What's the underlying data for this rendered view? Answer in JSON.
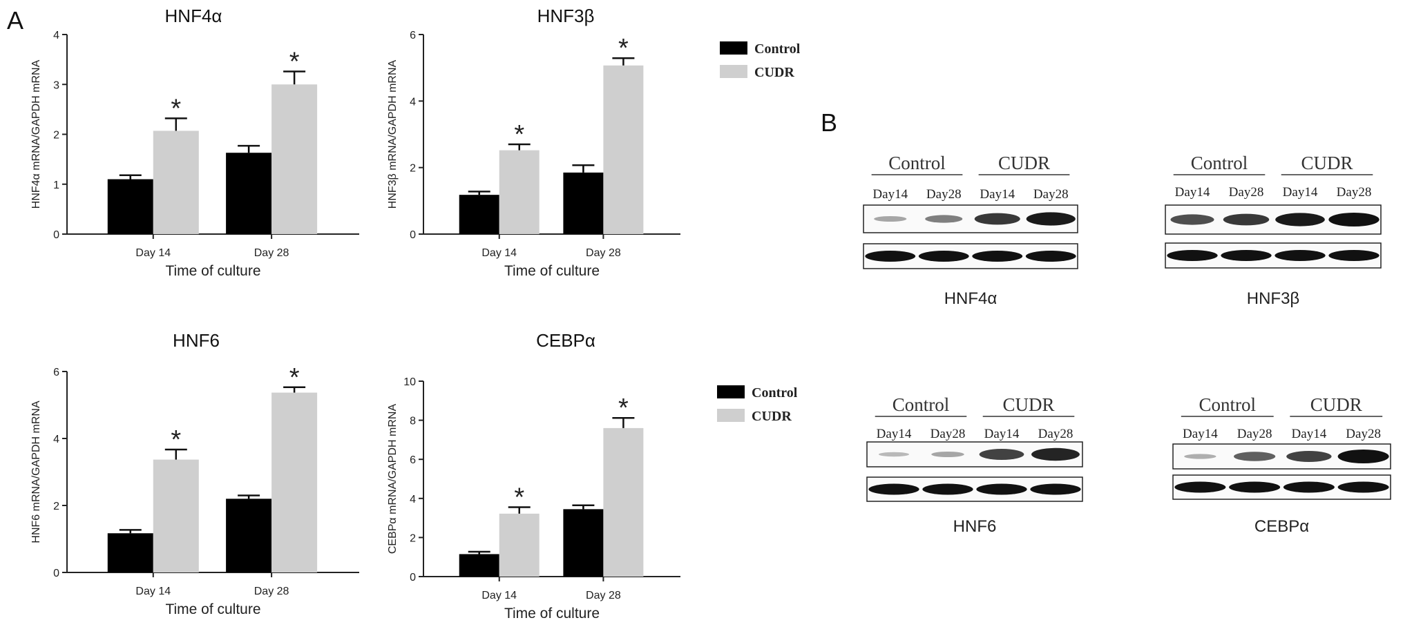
{
  "panel_labels": {
    "a": "A",
    "b": "B"
  },
  "colors": {
    "control": "#000000",
    "cudr": "#cfcfcf",
    "axis": "#222222",
    "band": "#111111"
  },
  "legend": {
    "control": "Control",
    "cudr": "CUDR"
  },
  "chart_data": [
    {
      "type": "bar",
      "title": "HNF4α",
      "ylabel": "HNF4α mRNA/GAPDH mRNA",
      "xlabel": "Time of culture",
      "categories": [
        "Day 14",
        "Day 28"
      ],
      "ylim": [
        0,
        4
      ],
      "yticks": [
        0,
        1,
        2,
        3,
        4
      ],
      "series": [
        {
          "name": "Control",
          "values": [
            1.1,
            1.63
          ],
          "errors": [
            0.08,
            0.14
          ]
        },
        {
          "name": "CUDR",
          "values": [
            2.07,
            3.0
          ],
          "errors": [
            0.25,
            0.26
          ]
        }
      ],
      "significance": [
        "*",
        "*"
      ]
    },
    {
      "type": "bar",
      "title": "HNF3β",
      "ylabel": "HNF3β mRNA/GAPDH mRNA",
      "xlabel": "Time of culture",
      "categories": [
        "Day 14",
        "Day 28"
      ],
      "ylim": [
        0,
        6
      ],
      "yticks": [
        0,
        2,
        4,
        6
      ],
      "series": [
        {
          "name": "Control",
          "values": [
            1.18,
            1.85
          ],
          "errors": [
            0.1,
            0.22
          ]
        },
        {
          "name": "CUDR",
          "values": [
            2.52,
            5.07
          ],
          "errors": [
            0.18,
            0.22
          ]
        }
      ],
      "significance": [
        "*",
        "*"
      ]
    },
    {
      "type": "bar",
      "title": "HNF6",
      "ylabel": "HNF6 mRNA/GAPDH mRNA",
      "xlabel": "Time of culture",
      "categories": [
        "Day 14",
        "Day 28"
      ],
      "ylim": [
        0,
        6
      ],
      "yticks": [
        0,
        2,
        4,
        6
      ],
      "series": [
        {
          "name": "Control",
          "values": [
            1.17,
            2.2
          ],
          "errors": [
            0.1,
            0.1
          ]
        },
        {
          "name": "CUDR",
          "values": [
            3.37,
            5.37
          ],
          "errors": [
            0.3,
            0.16
          ]
        }
      ],
      "significance": [
        "*",
        "*"
      ]
    },
    {
      "type": "bar",
      "title": "CEBPα",
      "ylabel": "CEBPα mRNA/GAPDH mRNA",
      "xlabel": "Time of culture",
      "categories": [
        "Day 14",
        "Day 28"
      ],
      "ylim": [
        0,
        10
      ],
      "yticks": [
        0,
        2,
        4,
        6,
        8,
        10
      ],
      "series": [
        {
          "name": "Control",
          "values": [
            1.15,
            3.45
          ],
          "errors": [
            0.12,
            0.2
          ]
        },
        {
          "name": "CUDR",
          "values": [
            3.22,
            7.6
          ],
          "errors": [
            0.33,
            0.52
          ]
        }
      ],
      "significance": [
        "*",
        "*"
      ]
    }
  ],
  "western_blots": [
    {
      "name": "HNF4α",
      "group_labels": [
        "Control",
        "CUDR"
      ],
      "lane_labels": [
        "Day14",
        "Day28",
        "Day14",
        "Day28"
      ],
      "band_intensity": [
        0.25,
        0.45,
        0.8,
        0.95
      ]
    },
    {
      "name": "HNF3β",
      "group_labels": [
        "Control",
        "CUDR"
      ],
      "lane_labels": [
        "Day14",
        "Day28",
        "Day14",
        "Day28"
      ],
      "band_intensity": [
        0.7,
        0.8,
        0.95,
        1.0
      ]
    },
    {
      "name": "HNF6",
      "group_labels": [
        "Control",
        "CUDR"
      ],
      "lane_labels": [
        "Day14",
        "Day28",
        "Day14",
        "Day28"
      ],
      "band_intensity": [
        0.15,
        0.25,
        0.75,
        0.9
      ]
    },
    {
      "name": "CEBPα",
      "group_labels": [
        "Control",
        "CUDR"
      ],
      "lane_labels": [
        "Day14",
        "Day28",
        "Day14",
        "Day28"
      ],
      "band_intensity": [
        0.2,
        0.6,
        0.75,
        1.0
      ]
    }
  ]
}
